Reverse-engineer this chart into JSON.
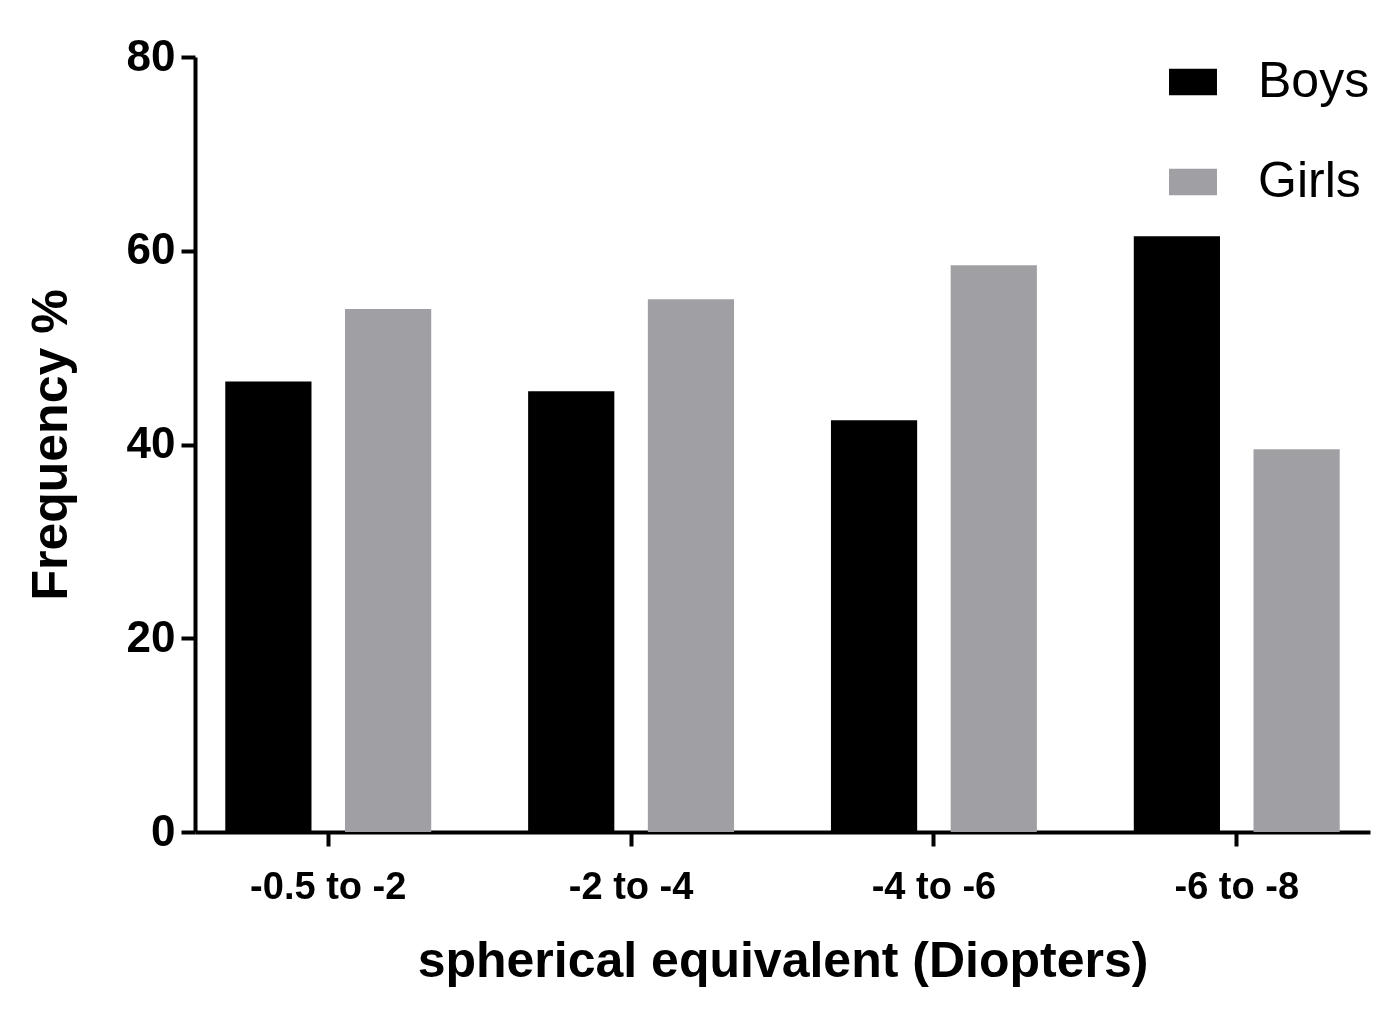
{
  "chart_data": {
    "type": "bar",
    "xlabel": "spherical equivalent (Diopters)",
    "ylabel": "Frequency %",
    "categories": [
      "-0.5 to -2",
      "-2 to -4",
      "-4 to -6",
      "-6 to -8"
    ],
    "series": [
      {
        "name": "Boys",
        "color": "#000000",
        "values": [
          46.5,
          45.5,
          42.5,
          61.5
        ]
      },
      {
        "name": "Girls",
        "color": "#a0a0a4",
        "values": [
          54,
          55,
          58.5,
          39.5
        ]
      }
    ],
    "ylim": [
      0,
      80
    ],
    "yticks": [
      0,
      20,
      40,
      60,
      80
    ],
    "legend": "top right"
  }
}
